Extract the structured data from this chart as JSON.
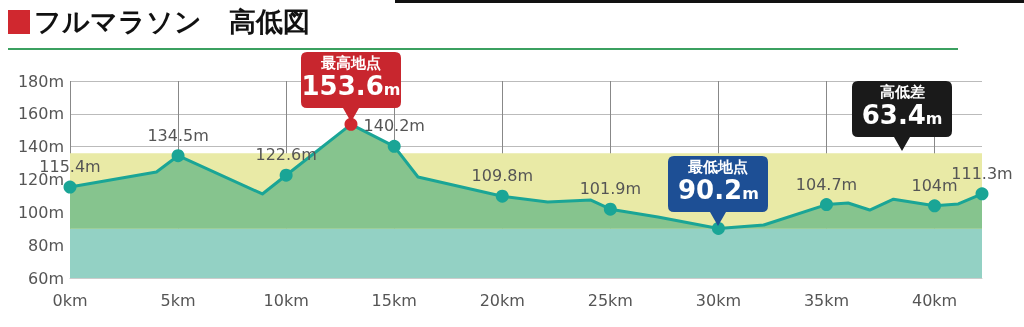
{
  "chart_data": {
    "type": "area",
    "title": "フルマラソン　高低図",
    "x": [
      0,
      4.0,
      5,
      8.9,
      10,
      13,
      15,
      16.1,
      20,
      22.1,
      24.1,
      25,
      27.2,
      30,
      32.1,
      35,
      36.0,
      37.0,
      38.1,
      40,
      41.1,
      42.195
    ],
    "series": [
      {
        "color": "#1aa596",
        "values": [
          115.4,
          124.6,
          134.5,
          111.2,
          122.6,
          153.6,
          140.2,
          121.5,
          109.8,
          106.3,
          107.5,
          101.9,
          97.2,
          90.2,
          92.3,
          104.7,
          105.7,
          101.4,
          108,
          104,
          105.1,
          111.3
        ],
        "value_labels": [
          "115.4m",
          null,
          "134.5m",
          null,
          "122.6m",
          null,
          "140.2m",
          null,
          "109.8m",
          null,
          null,
          "101.9m",
          null,
          null,
          null,
          "104.7m",
          null,
          null,
          null,
          "104m",
          null,
          "111.3m"
        ],
        "colors": [
          "#1aa596",
          "#1aa596",
          "#1aa596",
          "#1aa596",
          "#1aa596",
          "#d0282f",
          "#1aa596",
          "#1aa596",
          "#1aa596",
          "#1aa596",
          "#1aa596",
          "#1aa596",
          "#1aa596",
          "#1aa596",
          "#1aa596",
          "#1aa596",
          "#1aa596",
          "#1aa596",
          "#1aa596",
          "#1aa596",
          "#1aa596",
          "#1aa596"
        ]
      }
    ],
    "xlim": [
      0,
      42.195
    ],
    "xticks": [
      {
        "value": 0,
        "label": "0km"
      },
      {
        "value": 5,
        "label": "5km"
      },
      {
        "value": 10,
        "label": "10km"
      },
      {
        "value": 15,
        "label": "15km"
      },
      {
        "value": 20,
        "label": "20km"
      },
      {
        "value": 25,
        "label": "25km"
      },
      {
        "value": 30,
        "label": "30km"
      },
      {
        "value": 35,
        "label": "35km"
      },
      {
        "value": 40,
        "label": "40km"
      }
    ],
    "ylim": [
      60,
      180
    ],
    "yticks": [
      {
        "value": 60,
        "label": "60m"
      },
      {
        "value": 80,
        "label": "80m"
      },
      {
        "value": 100,
        "label": "100m"
      },
      {
        "value": 120,
        "label": "120m"
      },
      {
        "value": 140,
        "label": "140m"
      },
      {
        "value": 160,
        "label": "160m"
      },
      {
        "value": 180,
        "label": "180m"
      }
    ],
    "bands": [
      {
        "axis": "y",
        "from": 60,
        "to": 90,
        "color": "#93d1c4"
      },
      {
        "axis": "y",
        "from": 90,
        "to": 136,
        "color": "#e9eaa6"
      }
    ],
    "annotations": [
      {
        "text": "最高地点\n153.6m",
        "x": 13,
        "y": 153.6
      },
      {
        "text": "最低地点\n90.2m",
        "x": 30,
        "y": 90.2
      },
      {
        "text": "高低差\n63.4m",
        "x": 38.5,
        "y": 136
      }
    ],
    "grid": true,
    "marker": "circle"
  }
}
